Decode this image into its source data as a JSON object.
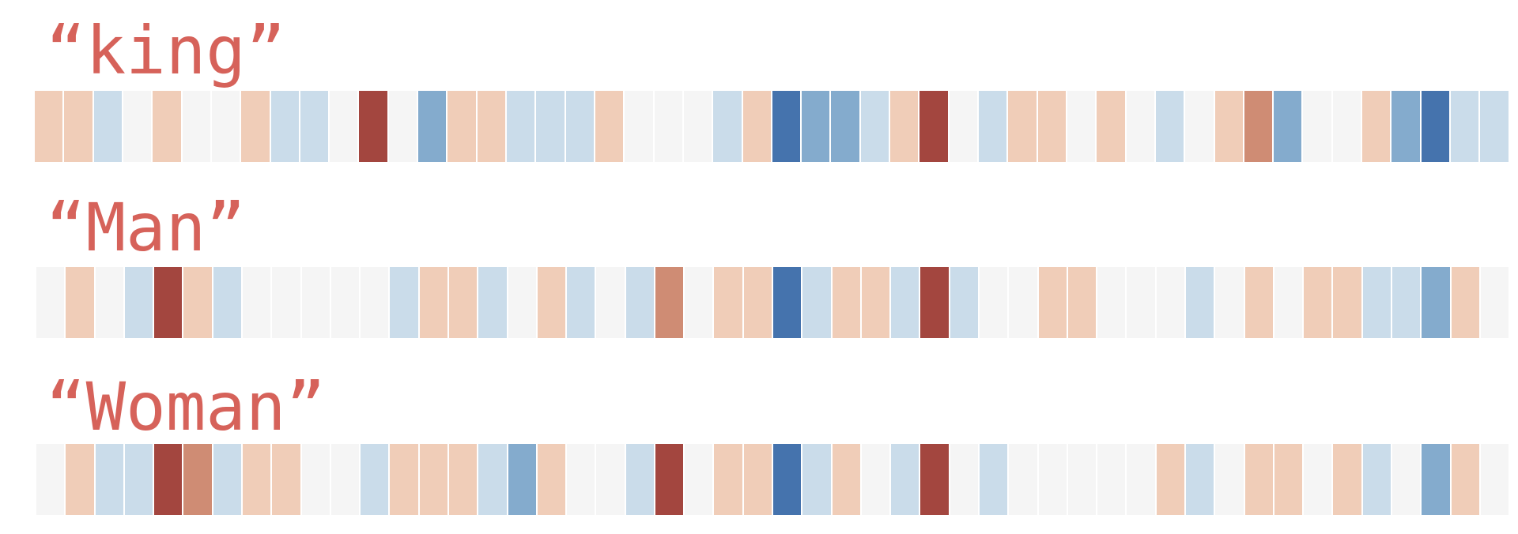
{
  "palette": {
    "-3": "#4573ad",
    "-2": "#84abcd",
    "-1": "#cadcea",
    "0": "#f5f5f5",
    "1": "#f0cdb8",
    "2": "#cf8c74",
    "3": "#a3463f"
  },
  "label_color": "#d6625a",
  "embeddings": [
    {
      "word": "“king”",
      "values": [
        1,
        1,
        -1,
        0,
        1,
        0,
        0,
        1,
        -1,
        -1,
        0,
        3,
        0,
        -2,
        1,
        1,
        -1,
        -1,
        -1,
        1,
        0,
        0,
        0,
        -1,
        1,
        -3,
        -2,
        -2,
        -1,
        1,
        3,
        0,
        -1,
        1,
        1,
        0,
        1,
        0,
        -1,
        0,
        1,
        2,
        -2,
        0,
        0,
        1,
        -2,
        -3,
        -1,
        -1
      ]
    },
    {
      "word": "“Man”",
      "values": [
        0,
        1,
        0,
        -1,
        3,
        1,
        -1,
        0,
        0,
        0,
        0,
        0,
        -1,
        1,
        1,
        -1,
        0,
        1,
        -1,
        0,
        -1,
        2,
        0,
        1,
        1,
        -3,
        -1,
        1,
        1,
        -1,
        3,
        -1,
        0,
        0,
        1,
        1,
        0,
        0,
        0,
        -1,
        0,
        1,
        0,
        1,
        1,
        -1,
        -1,
        -2,
        1,
        0
      ]
    },
    {
      "word": "“Woman”",
      "values": [
        0,
        1,
        -1,
        -1,
        3,
        2,
        -1,
        1,
        1,
        0,
        0,
        -1,
        1,
        1,
        1,
        -1,
        -2,
        1,
        0,
        0,
        -1,
        3,
        0,
        1,
        1,
        -3,
        -1,
        1,
        0,
        -1,
        3,
        0,
        -1,
        0,
        0,
        0,
        0,
        0,
        1,
        -1,
        0,
        1,
        1,
        0,
        1,
        -1,
        0,
        -2,
        1,
        0
      ]
    }
  ]
}
